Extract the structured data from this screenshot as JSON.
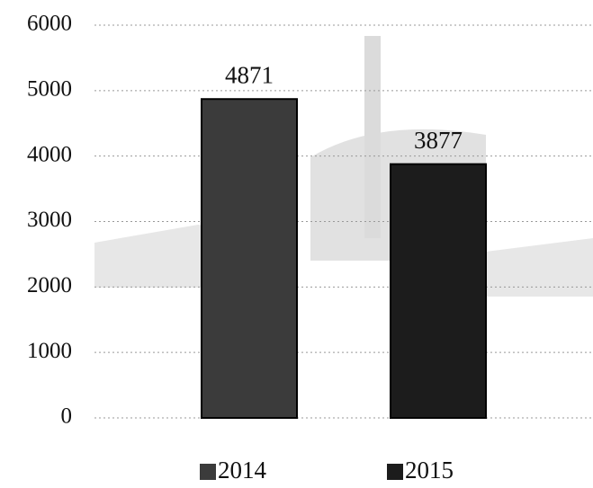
{
  "chart_data": {
    "type": "bar",
    "categories": [
      null
    ],
    "series": [
      {
        "name": "2014",
        "color": "#3b3b3b",
        "values": [
          4871
        ]
      },
      {
        "name": "2015",
        "color": "#1c1c1c",
        "values": [
          3877
        ]
      }
    ],
    "ylim": [
      0,
      6000
    ],
    "yticks": [
      0,
      1000,
      2000,
      3000,
      4000,
      5000,
      6000
    ],
    "grid": true,
    "legend": "bottom"
  }
}
